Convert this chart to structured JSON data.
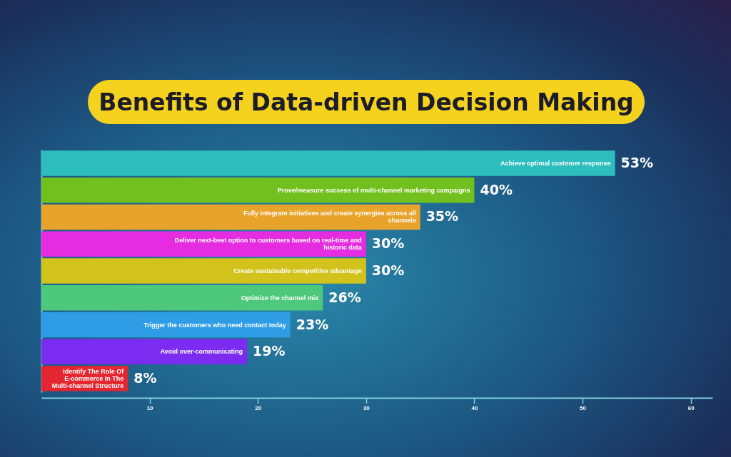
{
  "chart_data": {
    "type": "bar",
    "orientation": "horizontal",
    "title": "Benefits of Data-driven Decision Making",
    "categories": [
      "Achieve optimal customer response",
      "Prove/measure success of multi-channel marketing campaigns",
      "Fully integrate initiatives and create synergies across all channels",
      "Deliver next-best option to customers based on real-time and historic data",
      "Create sustainable competitive advantage",
      "Optimize the channel mix",
      "Trigger the customers who need contact today",
      "Avoid over-communicating",
      "Identify The Role Of E-commerce In The Multi-channel Structure"
    ],
    "values": [
      53,
      40,
      35,
      30,
      30,
      26,
      23,
      19,
      8
    ],
    "value_labels": [
      "53%",
      "40%",
      "35%",
      "30%",
      "30%",
      "26%",
      "23%",
      "19%",
      "8%"
    ],
    "colors": [
      "#2ebdbd",
      "#72c01e",
      "#e8a32a",
      "#e52ce0",
      "#d2c21c",
      "#4ec97b",
      "#2f9de6",
      "#7b2cf0",
      "#e3262f"
    ],
    "xlim": [
      0,
      62
    ],
    "xticks": [
      10,
      20,
      30,
      40,
      50,
      60
    ],
    "grid": false,
    "legend": false
  }
}
